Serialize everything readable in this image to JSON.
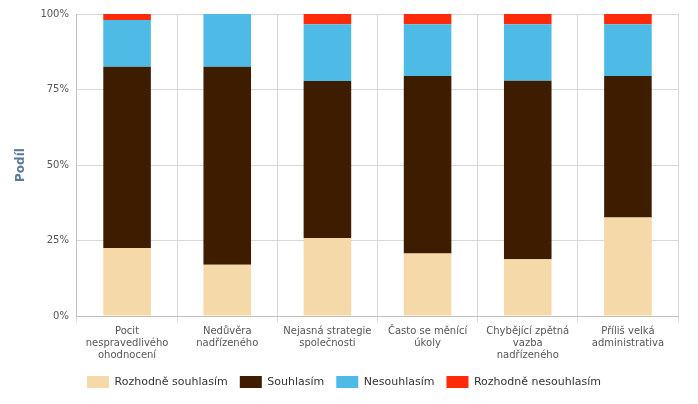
{
  "chart_data": {
    "type": "bar",
    "stacked": true,
    "grid": true,
    "legend": "bottom",
    "y_label": "Podíl",
    "categories": [
      "Pocit\nnespravedlivého\nohodnocení",
      "Nedůvěra\nnadřízeného",
      "Nejasná strategie\nspolečnosti",
      "Často se měnící\núkoly",
      "Chybějící zpětná\nvazba\nnadřízeného",
      "Příliš velká\nadministrativa"
    ],
    "series": [
      {
        "name": "Rozhodně souhlasím",
        "color": "#f5d9a8",
        "values": [
          22.5,
          17,
          25.8,
          20.7,
          18.8,
          32.6
        ]
      },
      {
        "name": "Souhlasím",
        "color": "#3d1c00",
        "values": [
          60,
          65.5,
          52,
          58.8,
          59.1,
          46.9
        ]
      },
      {
        "name": "Nesouhlasím",
        "color": "#4dbbe6",
        "values": [
          15.5,
          17.5,
          18.8,
          17.1,
          18.7,
          17.1
        ]
      },
      {
        "name": "Rozhodně nesouhlasím",
        "color": "#ff2a0a",
        "values": [
          2,
          0,
          3.4,
          3.4,
          3.4,
          3.4
        ]
      }
    ],
    "ylim": [
      0,
      100
    ],
    "yticks": [
      {
        "value": 0,
        "label": "0%"
      },
      {
        "value": 25,
        "label": "25%"
      },
      {
        "value": 50,
        "label": "50%"
      },
      {
        "value": 75,
        "label": "75%"
      },
      {
        "value": 100,
        "label": "100%"
      }
    ]
  }
}
